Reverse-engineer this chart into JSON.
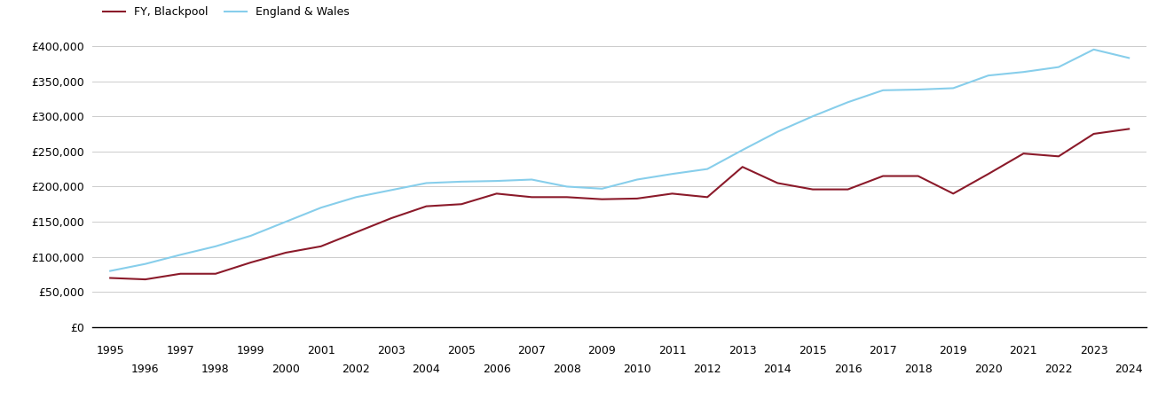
{
  "blackpool_years": [
    1995,
    1996,
    1997,
    1998,
    1999,
    2000,
    2001,
    2002,
    2003,
    2004,
    2005,
    2006,
    2007,
    2008,
    2009,
    2010,
    2011,
    2012,
    2013,
    2014,
    2015,
    2016,
    2017,
    2018,
    2019,
    2020,
    2021,
    2022,
    2023,
    2024
  ],
  "blackpool_values": [
    70000,
    68000,
    76000,
    76000,
    92000,
    106000,
    115000,
    135000,
    155000,
    172000,
    175000,
    190000,
    185000,
    185000,
    182000,
    183000,
    190000,
    185000,
    228000,
    205000,
    196000,
    196000,
    215000,
    215000,
    190000,
    218000,
    247000,
    243000,
    275000,
    282000
  ],
  "england_years": [
    1995,
    1996,
    1997,
    1998,
    1999,
    2000,
    2001,
    2002,
    2003,
    2004,
    2005,
    2006,
    2007,
    2008,
    2009,
    2010,
    2011,
    2012,
    2013,
    2014,
    2015,
    2016,
    2017,
    2018,
    2019,
    2020,
    2021,
    2022,
    2023,
    2024
  ],
  "england_values": [
    80000,
    90000,
    103000,
    115000,
    130000,
    150000,
    170000,
    185000,
    195000,
    205000,
    207000,
    208000,
    210000,
    200000,
    197000,
    210000,
    218000,
    225000,
    252000,
    278000,
    300000,
    320000,
    337000,
    338000,
    340000,
    358000,
    363000,
    370000,
    395000,
    383000
  ],
  "blackpool_color": "#8B1A2A",
  "england_color": "#87CEEB",
  "blackpool_label": "FY, Blackpool",
  "england_label": "England & Wales",
  "ylim": [
    0,
    420000
  ],
  "yticks": [
    0,
    50000,
    100000,
    150000,
    200000,
    250000,
    300000,
    350000,
    400000
  ],
  "ytick_labels": [
    "£0",
    "£50,000",
    "£100,000",
    "£150,000",
    "£200,000",
    "£250,000",
    "£300,000",
    "£350,000",
    "£400,000"
  ],
  "xticks_row1": [
    1995,
    1997,
    1999,
    2001,
    2003,
    2005,
    2007,
    2009,
    2011,
    2013,
    2015,
    2017,
    2019,
    2021,
    2023
  ],
  "xticks_row2": [
    1996,
    1998,
    2000,
    2002,
    2004,
    2006,
    2008,
    2010,
    2012,
    2014,
    2016,
    2018,
    2020,
    2022,
    2024
  ],
  "xlim": [
    1994.5,
    2024.5
  ],
  "line_width": 1.5,
  "background_color": "#ffffff",
  "grid_color": "#cccccc",
  "tick_fontsize": 9,
  "legend_fontsize": 9
}
